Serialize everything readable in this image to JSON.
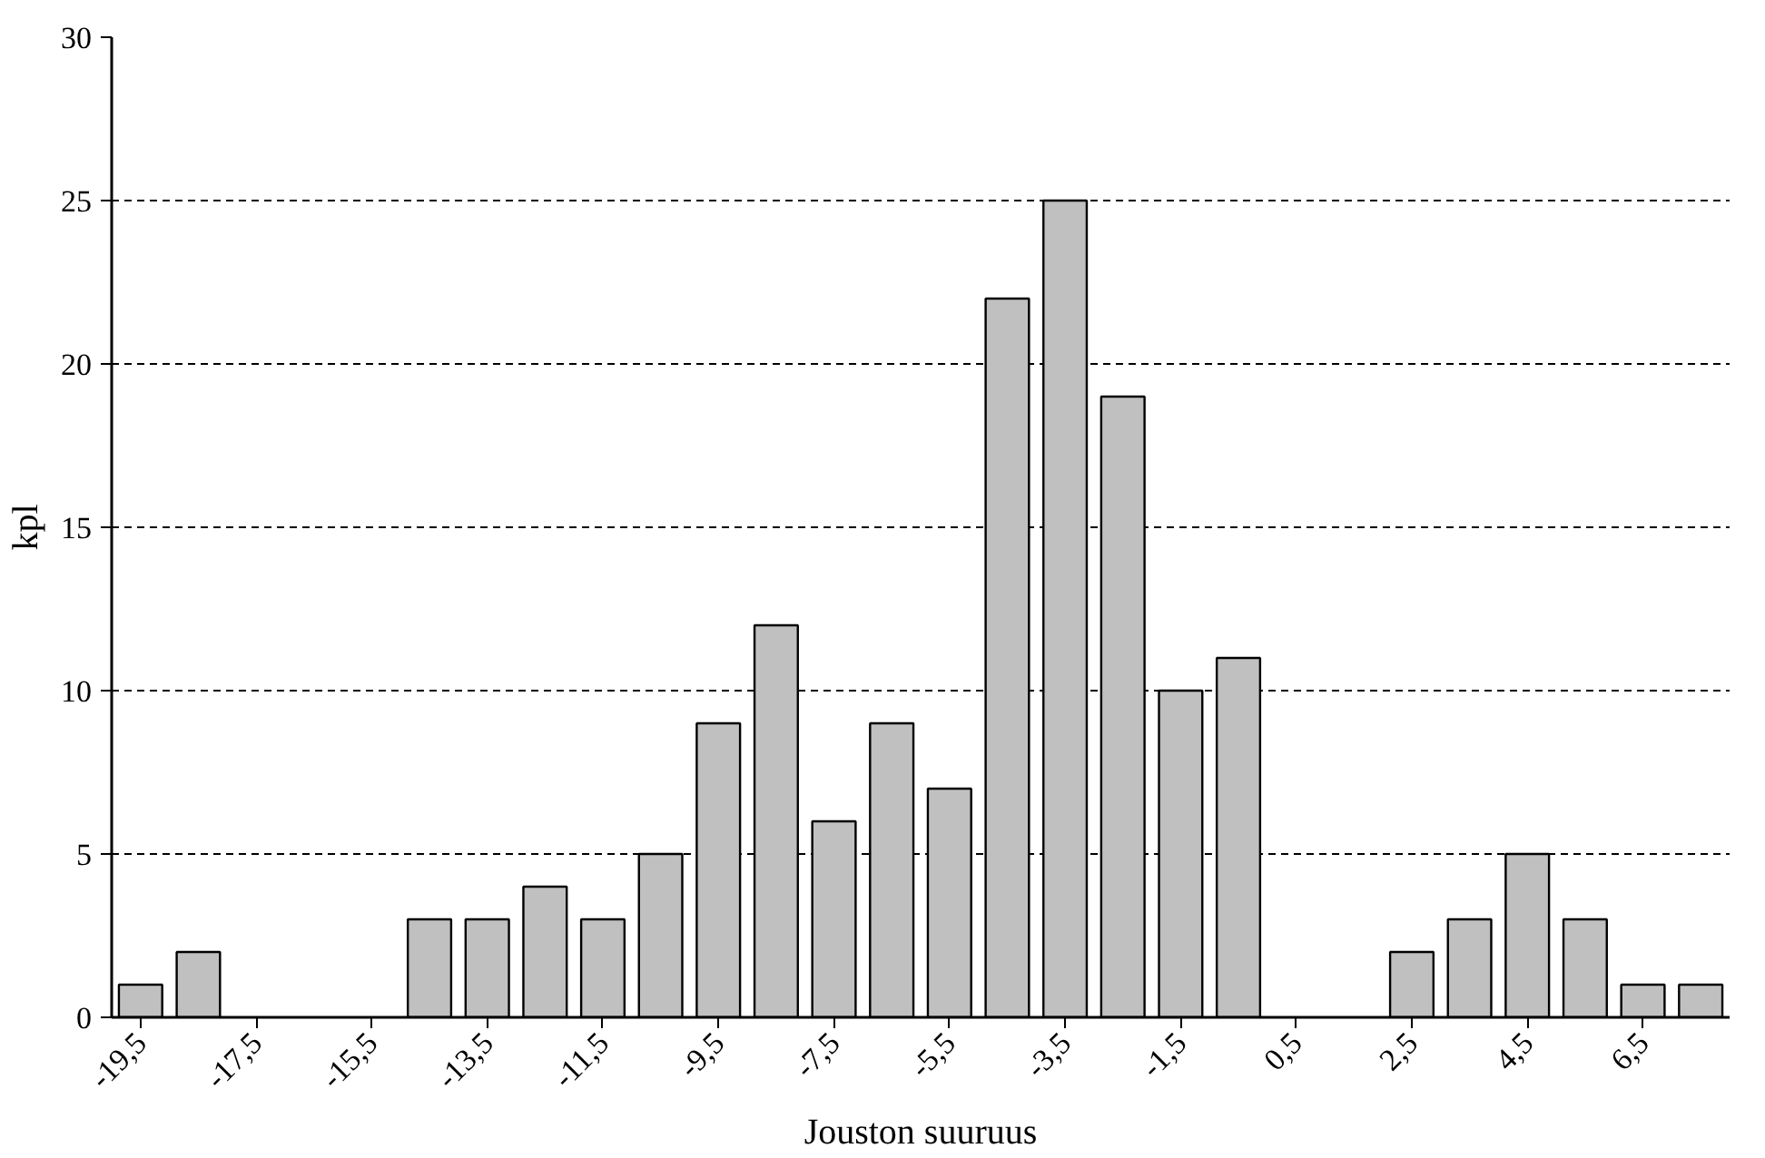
{
  "chart_data": {
    "type": "bar",
    "xlabel": "Jouston suuruus",
    "ylabel": "kpl",
    "categories": [
      "-19,5",
      null,
      "-17,5",
      null,
      "-15,5",
      null,
      "-13,5",
      null,
      "-11,5",
      null,
      "-9,5",
      null,
      "-7,5",
      null,
      "-5,5",
      null,
      "-3,5",
      null,
      "-1,5",
      null,
      "0,5",
      null,
      "2,5",
      null,
      "4,5",
      null,
      "6,5",
      null
    ],
    "values": [
      1,
      2,
      0,
      0,
      0,
      3,
      3,
      4,
      3,
      5,
      9,
      12,
      6,
      9,
      7,
      22,
      25,
      19,
      10,
      11,
      0,
      0,
      2,
      3,
      5,
      3,
      1,
      1
    ],
    "color": "#c0c0c0",
    "ylim": [
      0,
      30
    ],
    "yticks": [
      0,
      5,
      10,
      15,
      20,
      25,
      30
    ],
    "grid": "y"
  }
}
